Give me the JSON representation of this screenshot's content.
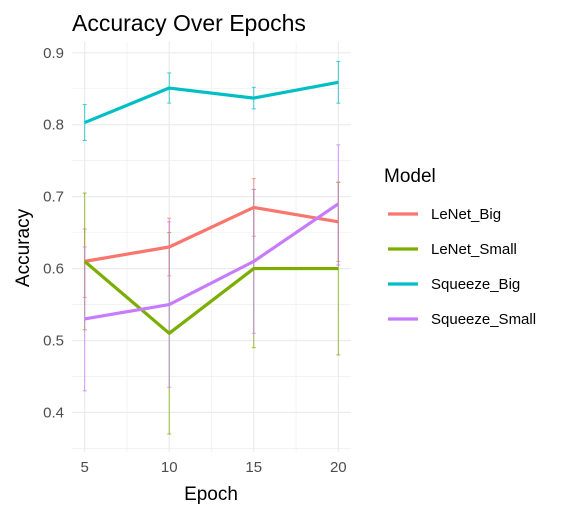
{
  "chart_data": {
    "type": "line",
    "title": "Accuracy Over Epochs",
    "xlabel": "Epoch",
    "ylabel": "Accuracy",
    "x": [
      5,
      10,
      15,
      20
    ],
    "x_ticks": [
      "5",
      "10",
      "15",
      "20"
    ],
    "y_ticks": [
      "0.4",
      "0.5",
      "0.6",
      "0.7",
      "0.8",
      "0.9"
    ],
    "xlim": [
      4.25,
      20.75
    ],
    "ylim": [
      0.345,
      0.915
    ],
    "grid": true,
    "legend_title": "Model",
    "legend_position": "right",
    "series": [
      {
        "name": "LeNet_Big",
        "color": "#F8766D",
        "values": [
          0.61,
          0.63,
          0.685,
          0.665
        ],
        "error_low": [
          0.56,
          0.59,
          0.645,
          0.61
        ],
        "error_high": [
          0.655,
          0.67,
          0.725,
          0.72
        ]
      },
      {
        "name": "LeNet_Small",
        "color": "#7CAE00",
        "values": [
          0.61,
          0.51,
          0.6,
          0.6
        ],
        "error_low": [
          0.515,
          0.37,
          0.49,
          0.48
        ],
        "error_high": [
          0.705,
          0.65,
          0.71,
          0.72
        ]
      },
      {
        "name": "Squeeze_Big",
        "color": "#00BFC4",
        "values": [
          0.803,
          0.851,
          0.837,
          0.859
        ],
        "error_low": [
          0.778,
          0.83,
          0.822,
          0.83
        ],
        "error_high": [
          0.828,
          0.872,
          0.852,
          0.888
        ]
      },
      {
        "name": "Squeeze_Small",
        "color": "#C77CFF",
        "values": [
          0.53,
          0.55,
          0.61,
          0.69
        ],
        "error_low": [
          0.43,
          0.435,
          0.51,
          0.605
        ],
        "error_high": [
          0.63,
          0.665,
          0.71,
          0.772
        ]
      }
    ]
  }
}
